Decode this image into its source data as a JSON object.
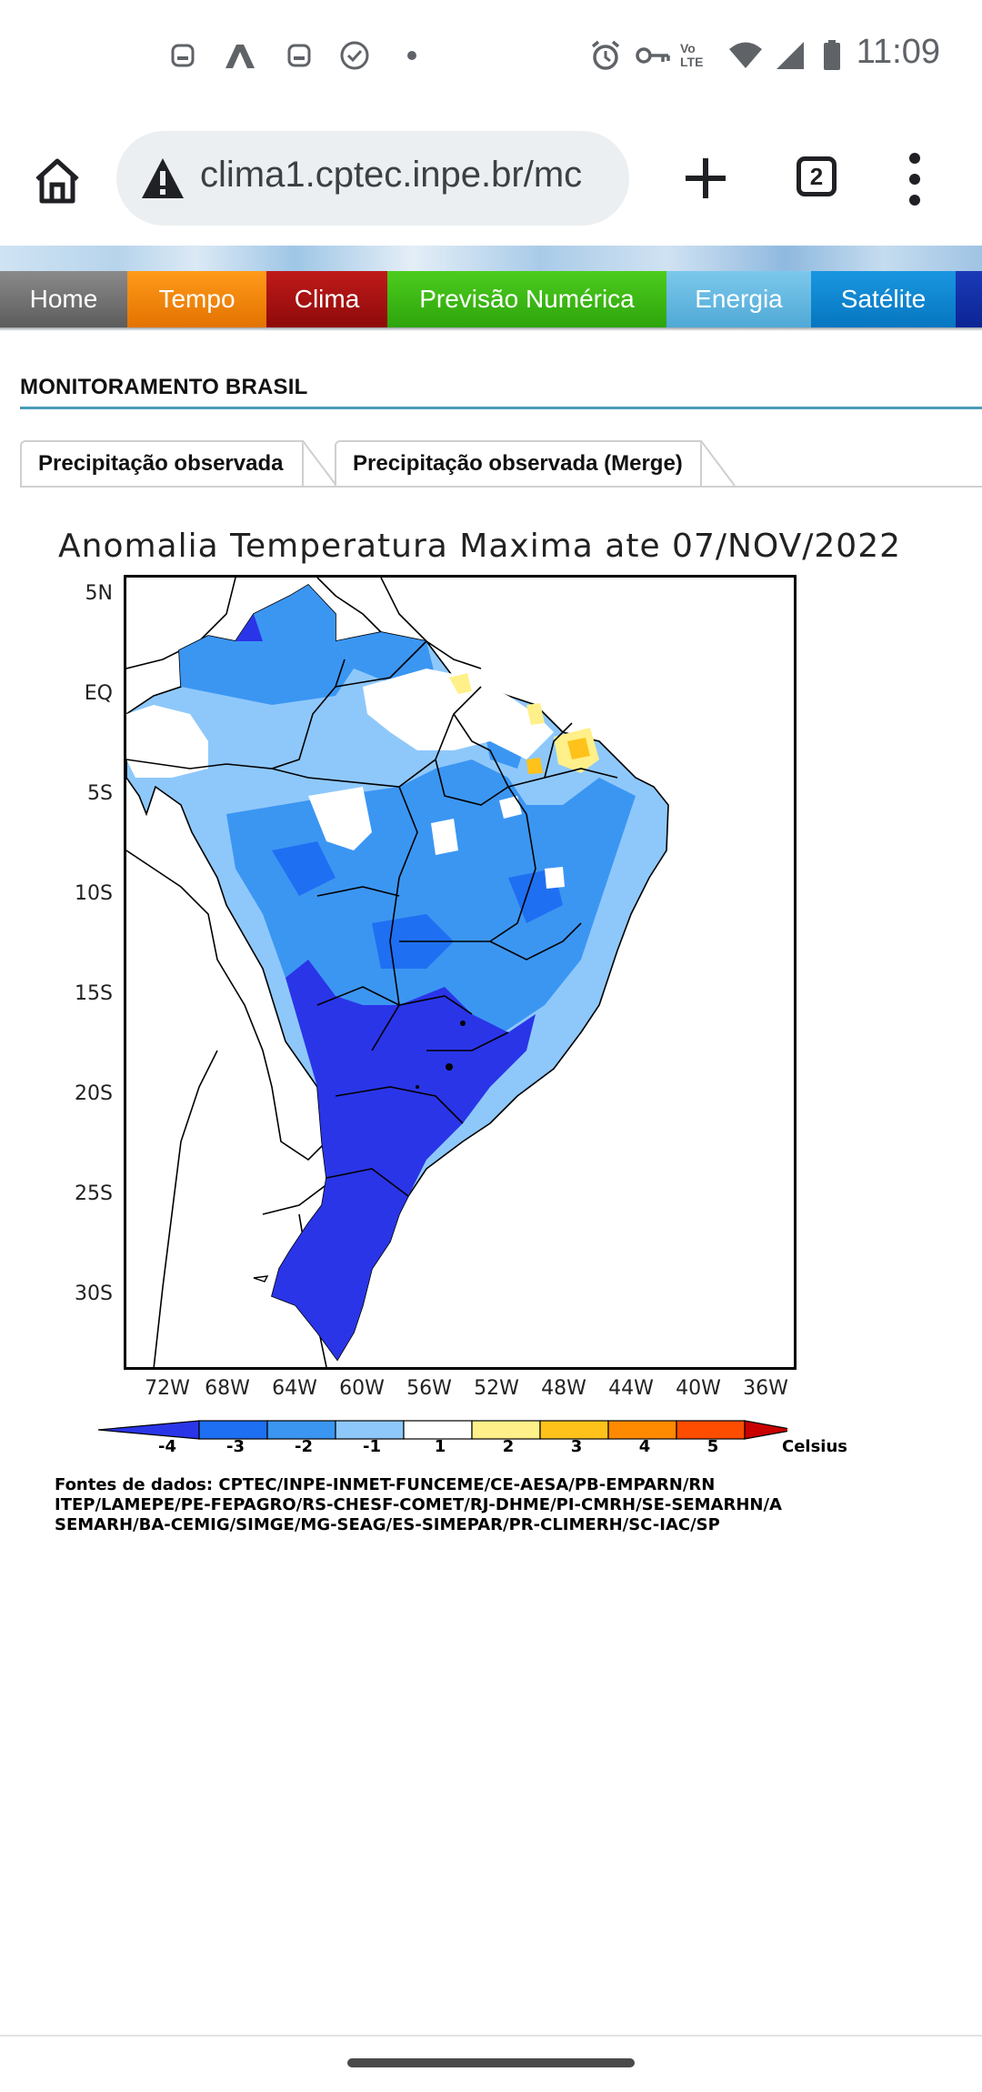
{
  "status_bar": {
    "time": "11:09",
    "left_icons": [
      "notification-square-icon",
      "app-a-icon",
      "notification-square-icon",
      "check-circle-icon",
      "dot-icon"
    ],
    "right_icons": [
      "alarm-icon",
      "key-icon",
      "volte-icon",
      "wifi-icon",
      "signal-icon",
      "battery-icon"
    ],
    "volte_label": "Vo LTE"
  },
  "browser": {
    "url": "clima1.cptec.inpe.br/mc",
    "tab_count": "2"
  },
  "nav": {
    "items": [
      {
        "label": "Home",
        "color": "#6d6d6d"
      },
      {
        "label": "Tempo",
        "color": "#f08000"
      },
      {
        "label": "Clima",
        "color": "#a81010"
      },
      {
        "label": "Previsão Numérica",
        "color": "#3cb814"
      },
      {
        "label": "Energia",
        "color": "#62b8df"
      },
      {
        "label": "Satélite",
        "color": "#0a86d2"
      }
    ]
  },
  "page": {
    "title": "MONITORAMENTO BRASIL",
    "tabs": [
      "Precipitação observada",
      "Precipitação observada (Merge)"
    ]
  },
  "figure": {
    "title": "Anomalia Temperatura Maxima ate 07/NOV/2022",
    "lat_labels": [
      "5N",
      "EQ",
      "5S",
      "10S",
      "15S",
      "20S",
      "25S",
      "30S"
    ],
    "lon_labels": [
      "72W",
      "68W",
      "64W",
      "60W",
      "56W",
      "52W",
      "48W",
      "44W",
      "40W",
      "36W"
    ],
    "colorbar": {
      "labels": [
        "-4",
        "-3",
        "-2",
        "-1",
        "1",
        "2",
        "3",
        "4",
        "5"
      ],
      "unit": "Celsius",
      "colors": [
        "#2a35e8",
        "#1f6ff2",
        "#3b96f2",
        "#8ec8fb",
        "#ffffff",
        "#fff08a",
        "#ffc21a",
        "#ff8a00",
        "#ff4d00",
        "#c80000"
      ]
    },
    "sources": [
      "Fontes de dados: CPTEC/INPE-INMET-FUNCEME/CE-AESA/PB-EMPARN/RN",
      "ITEP/LAMEPE/PE-FEPAGRO/RS-CHESF-COMET/RJ-DHME/PI-CMRH/SE-SEMARHN/A",
      "SEMARH/BA-CEMIG/SIMGE/MG-SEAG/ES-SIMEPAR/PR-CLIMERH/SC-IAC/SP"
    ]
  }
}
